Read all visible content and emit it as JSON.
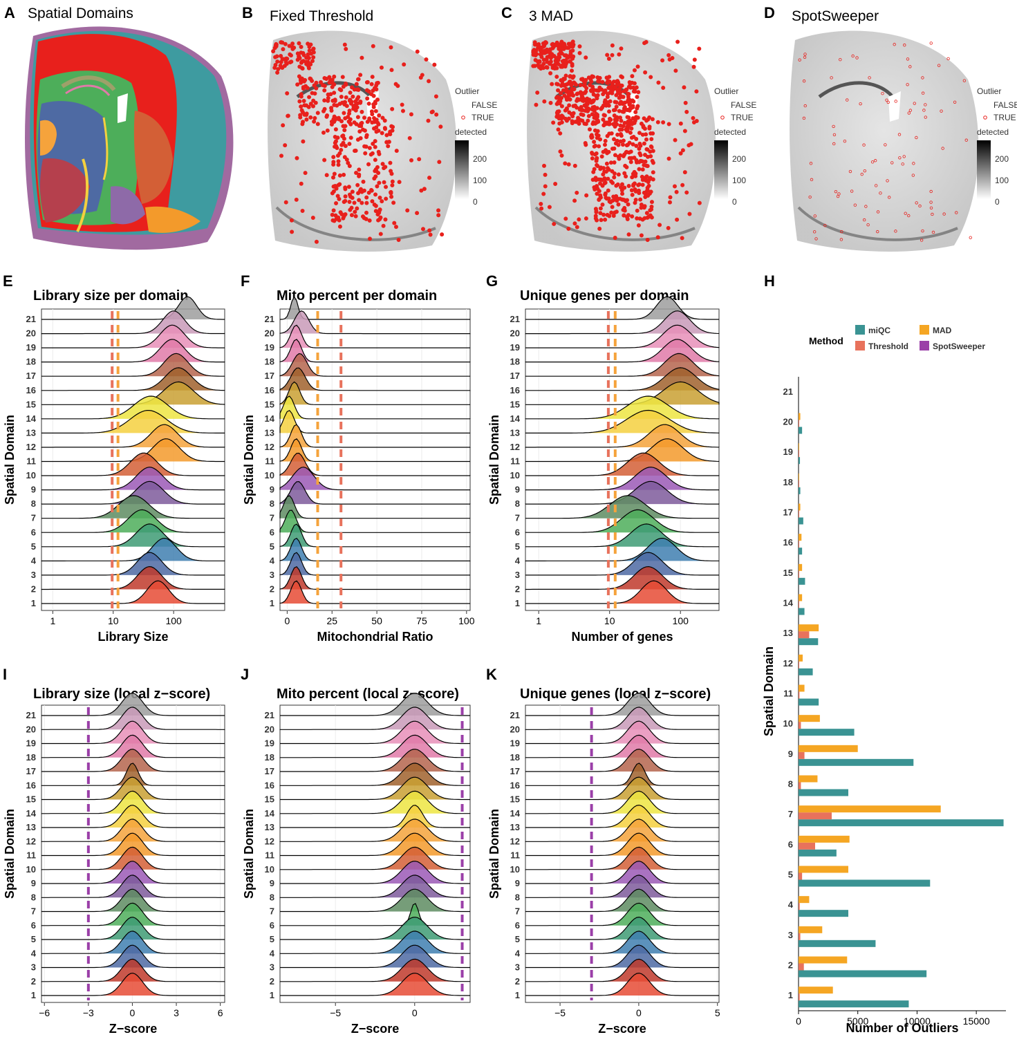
{
  "palette": {
    "domain_colors": [
      "#E64B35",
      "#C0392B",
      "#4E6AA3",
      "#3F7FB0",
      "#3E9B74",
      "#4DAE5A",
      "#5E8C61",
      "#7E5A9B",
      "#9B59B6",
      "#D35F36",
      "#F39A2B",
      "#F5A33C",
      "#F4D03F",
      "#EDE542",
      "#C9A032",
      "#A0622D",
      "#B5654D",
      "#E07AA8",
      "#E88FB8",
      "#C99AB9",
      "#9E9E9E"
    ],
    "mad_line": "#F5A33C",
    "threshold_line": "#E8725C",
    "spotsweeper_line": "#9B3FA8",
    "outlier_point": "#E8201C",
    "miqc": "#3A9393",
    "threshold": "#E8725C",
    "mad": "#F5A623",
    "spotsweeper": "#9B3FA8"
  },
  "panels": {
    "A": {
      "letter": "A",
      "title": "Spatial Domains"
    },
    "B": {
      "letter": "B",
      "title": "Fixed Threshold"
    },
    "C": {
      "letter": "C",
      "title": "3 MAD"
    },
    "D": {
      "letter": "D",
      "title": "SpotSweeper"
    }
  },
  "map_legend": {
    "outlier_title": "Outlier",
    "false_label": "FALSE",
    "true_label": "TRUE",
    "gradient_title": "detected",
    "gradient_ticks": [
      "200",
      "100",
      "0"
    ]
  },
  "chart_data": [
    {
      "id": "E",
      "letter": "E",
      "type": "ridgeline",
      "title": "Library size per domain",
      "xlabel": "Library Size",
      "ylabel": "Spatial Domain",
      "x_scale": "log10",
      "xlim": [
        0.65,
        700
      ],
      "x_ticks": [
        {
          "value": 1,
          "label": "1"
        },
        {
          "value": 10,
          "label": "10"
        },
        {
          "value": 100,
          "label": "100"
        }
      ],
      "categories": [
        "1",
        "2",
        "3",
        "4",
        "5",
        "6",
        "7",
        "8",
        "9",
        "10",
        "11",
        "12",
        "13",
        "14",
        "15",
        "16",
        "17",
        "18",
        "19",
        "20",
        "21"
      ],
      "peaks": [
        55,
        40,
        40,
        70,
        40,
        30,
        22,
        40,
        40,
        32,
        75,
        70,
        38,
        42,
        120,
        120,
        110,
        95,
        95,
        100,
        170
      ],
      "spreads": [
        0.18,
        0.2,
        0.2,
        0.2,
        0.22,
        0.23,
        0.25,
        0.23,
        0.22,
        0.22,
        0.22,
        0.22,
        0.3,
        0.28,
        0.25,
        0.22,
        0.2,
        0.2,
        0.2,
        0.18,
        0.15
      ],
      "vlines": [
        {
          "value": 9.6,
          "color_key": "threshold_line"
        },
        {
          "value": 12,
          "color_key": "mad_line"
        }
      ]
    },
    {
      "id": "F",
      "letter": "F",
      "type": "ridgeline",
      "title": "Mito percent per domain",
      "xlabel": "Mitochondrial Ratio",
      "ylabel": "Spatial Domain",
      "x_scale": "linear",
      "xlim": [
        -4,
        102
      ],
      "x_ticks": [
        {
          "value": 0,
          "label": "0"
        },
        {
          "value": 25,
          "label": "25"
        },
        {
          "value": 50,
          "label": "50"
        },
        {
          "value": 75,
          "label": "75"
        },
        {
          "value": 100,
          "label": "100"
        }
      ],
      "categories": [
        "1",
        "2",
        "3",
        "4",
        "5",
        "6",
        "7",
        "8",
        "9",
        "10",
        "11",
        "12",
        "13",
        "14",
        "15",
        "16",
        "17",
        "18",
        "19",
        "20",
        "21"
      ],
      "peaks": [
        5,
        5,
        5,
        5,
        5,
        2,
        1,
        6,
        9,
        6,
        5,
        5,
        1,
        1,
        4,
        6,
        7,
        5,
        5,
        8,
        4
      ],
      "spreads": [
        3,
        3,
        3,
        3,
        3,
        3,
        3,
        4,
        6,
        4,
        3,
        3,
        3,
        3,
        3,
        4,
        4,
        3,
        3,
        4,
        2
      ],
      "vlines": [
        {
          "value": 17,
          "color_key": "mad_line"
        },
        {
          "value": 30,
          "color_key": "threshold_line"
        }
      ]
    },
    {
      "id": "G",
      "letter": "G",
      "type": "ridgeline",
      "title": "Unique genes per domain",
      "xlabel": "Number of genes",
      "ylabel": "Spatial Domain",
      "x_scale": "log10",
      "xlim": [
        0.65,
        350
      ],
      "x_ticks": [
        {
          "value": 1,
          "label": "1"
        },
        {
          "value": 10,
          "label": "10"
        },
        {
          "value": 100,
          "label": "100"
        }
      ],
      "categories": [
        "1",
        "2",
        "3",
        "4",
        "5",
        "6",
        "7",
        "8",
        "9",
        "10",
        "11",
        "12",
        "13",
        "14",
        "15",
        "16",
        "17",
        "18",
        "19",
        "20",
        "21"
      ],
      "peaks": [
        42,
        35,
        35,
        55,
        33,
        25,
        18,
        38,
        38,
        30,
        65,
        60,
        35,
        35,
        100,
        100,
        95,
        90,
        90,
        90,
        65
      ],
      "spreads": [
        0.18,
        0.2,
        0.2,
        0.2,
        0.22,
        0.23,
        0.25,
        0.23,
        0.22,
        0.22,
        0.22,
        0.22,
        0.3,
        0.28,
        0.25,
        0.22,
        0.2,
        0.2,
        0.2,
        0.18,
        0.15
      ],
      "vlines": [
        {
          "value": 9.6,
          "color_key": "threshold_line"
        },
        {
          "value": 12,
          "color_key": "mad_line"
        }
      ]
    },
    {
      "id": "I",
      "letter": "I",
      "type": "ridgeline",
      "title": "Library size (local z−score)",
      "xlabel": "Z−score",
      "ylabel": "Spatial Domain",
      "x_scale": "linear",
      "xlim": [
        -6.2,
        6.3
      ],
      "x_ticks": [
        {
          "value": -6,
          "label": "−6"
        },
        {
          "value": -3,
          "label": "−3"
        },
        {
          "value": 0,
          "label": "0"
        },
        {
          "value": 3,
          "label": "3"
        },
        {
          "value": 6,
          "label": "6"
        }
      ],
      "categories": [
        "1",
        "2",
        "3",
        "4",
        "5",
        "6",
        "7",
        "8",
        "9",
        "10",
        "11",
        "12",
        "13",
        "14",
        "15",
        "16",
        "17",
        "18",
        "19",
        "20",
        "21"
      ],
      "peaks": [
        0,
        0,
        0,
        0,
        0,
        0,
        0,
        0,
        0,
        0,
        0,
        0,
        0,
        0,
        0,
        0,
        0,
        0,
        0,
        0,
        0
      ],
      "spreads": [
        0.7,
        0.7,
        0.7,
        0.7,
        0.7,
        0.7,
        0.7,
        0.7,
        0.7,
        0.7,
        0.7,
        0.7,
        0.7,
        0.7,
        0.7,
        0.4,
        0.7,
        0.7,
        0.7,
        0.7,
        0.7
      ],
      "vlines": [
        {
          "value": -3,
          "color_key": "spotsweeper_line"
        }
      ]
    },
    {
      "id": "J",
      "letter": "J",
      "type": "ridgeline",
      "title": "Mito percent  (local z−score)",
      "xlabel": "Z−score",
      "ylabel": "Spatial Domain",
      "x_scale": "linear",
      "xlim": [
        -8.5,
        3.5
      ],
      "x_ticks": [
        {
          "value": -5,
          "label": "−5"
        },
        {
          "value": 0,
          "label": "0"
        }
      ],
      "categories": [
        "1",
        "2",
        "3",
        "4",
        "5",
        "6",
        "7",
        "8",
        "9",
        "10",
        "11",
        "12",
        "13",
        "14",
        "15",
        "16",
        "17",
        "18",
        "19",
        "20",
        "21"
      ],
      "peaks": [
        0,
        0,
        0,
        0,
        0,
        0,
        0,
        0,
        0,
        0,
        0,
        0,
        0,
        0,
        0,
        0,
        0,
        0,
        0,
        0,
        0
      ],
      "spreads": [
        0.8,
        0.8,
        0.8,
        0.8,
        0.8,
        0.25,
        0.8,
        0.8,
        0.8,
        0.8,
        0.8,
        0.8,
        0.5,
        0.8,
        0.8,
        0.8,
        0.8,
        0.8,
        0.8,
        0.8,
        0.8
      ],
      "vlines": [
        {
          "value": 3,
          "color_key": "spotsweeper_line"
        }
      ]
    },
    {
      "id": "K",
      "letter": "K",
      "type": "ridgeline",
      "title": "Unique genes (local z−score)",
      "xlabel": "Z−score",
      "ylabel": "Spatial Domain",
      "x_scale": "linear",
      "xlim": [
        -7.2,
        5.1
      ],
      "x_ticks": [
        {
          "value": -5,
          "label": "−5"
        },
        {
          "value": 0,
          "label": "0"
        },
        {
          "value": 5,
          "label": "5"
        }
      ],
      "categories": [
        "1",
        "2",
        "3",
        "4",
        "5",
        "6",
        "7",
        "8",
        "9",
        "10",
        "11",
        "12",
        "13",
        "14",
        "15",
        "16",
        "17",
        "18",
        "19",
        "20",
        "21"
      ],
      "peaks": [
        0,
        0,
        0,
        0,
        0,
        0,
        0,
        0,
        0,
        0,
        0,
        0,
        0,
        0,
        0,
        0,
        0,
        0,
        0,
        0,
        0
      ],
      "spreads": [
        0.7,
        0.7,
        0.7,
        0.7,
        0.7,
        0.7,
        0.7,
        0.7,
        0.7,
        0.7,
        0.7,
        0.7,
        0.7,
        0.7,
        0.7,
        0.4,
        0.7,
        0.7,
        0.7,
        0.7,
        0.7
      ],
      "vlines": [
        {
          "value": -3,
          "color_key": "spotsweeper_line"
        }
      ]
    },
    {
      "id": "H",
      "letter": "H",
      "type": "bar",
      "orientation": "horizontal",
      "xlabel": "Number of Outliers",
      "ylabel": "Spatial Domain",
      "xlim": [
        0,
        17500
      ],
      "x_ticks": [
        {
          "value": 0,
          "label": "0"
        },
        {
          "value": 5000,
          "label": "5000"
        },
        {
          "value": 10000,
          "label": "10000"
        },
        {
          "value": 15000,
          "label": "15000"
        }
      ],
      "legend_title": "Method",
      "categories": [
        "1",
        "2",
        "3",
        "4",
        "5",
        "6",
        "7",
        "8",
        "9",
        "10",
        "11",
        "12",
        "13",
        "14",
        "15",
        "16",
        "17",
        "18",
        "19",
        "20",
        "21"
      ],
      "series": [
        {
          "name": "miQC",
          "color_key": "miqc",
          "values": [
            9300,
            10800,
            6500,
            4200,
            11100,
            3200,
            17300,
            4200,
            9700,
            4700,
            1700,
            1200,
            1650,
            500,
            550,
            300,
            400,
            150,
            120,
            300,
            0
          ]
        },
        {
          "name": "Threshold",
          "color_key": "threshold",
          "values": [
            100,
            450,
            150,
            100,
            300,
            1400,
            2800,
            200,
            500,
            200,
            80,
            50,
            900,
            30,
            30,
            30,
            30,
            20,
            20,
            20,
            0
          ]
        },
        {
          "name": "MAD",
          "color_key": "mad",
          "values": [
            2900,
            4100,
            2000,
            900,
            4200,
            4300,
            12000,
            1600,
            5000,
            1800,
            500,
            350,
            1700,
            300,
            300,
            250,
            150,
            50,
            20,
            150,
            0
          ]
        },
        {
          "name": "SpotSweeper",
          "color_key": "spotsweeper",
          "values": [
            0,
            0,
            0,
            0,
            0,
            0,
            0,
            0,
            0,
            0,
            0,
            0,
            0,
            0,
            0,
            0,
            0,
            0,
            0,
            0,
            0
          ]
        }
      ],
      "legend_layout": [
        [
          "miQC",
          "MAD"
        ],
        [
          "Threshold",
          "SpotSweeper"
        ]
      ]
    }
  ]
}
